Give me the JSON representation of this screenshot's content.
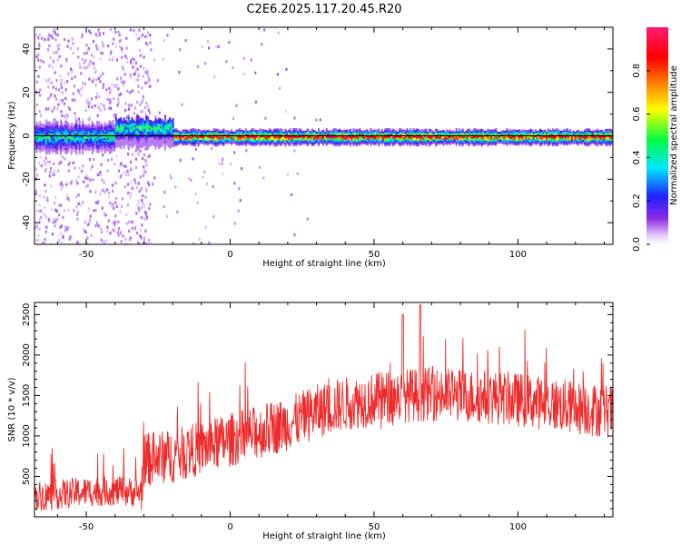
{
  "title": "C2E6.2025.117.20.45.R20",
  "chart_data": [
    {
      "type": "heatmap",
      "xlabel": "Height of straight line (km)",
      "ylabel": "Frequency (Hz)",
      "xlim": [
        -68,
        133
      ],
      "ylim": [
        -50,
        50
      ],
      "xticks": [
        -50,
        0,
        50,
        100
      ],
      "yticks": [
        -40,
        -20,
        0,
        20,
        40
      ],
      "center_line_y": 0,
      "colorbar": {
        "label": "Normalized spectral amplitude",
        "range": [
          0,
          1
        ],
        "ticks": [
          "0.0",
          "0.2",
          "0.4",
          "0.6",
          "0.8"
        ],
        "colormap": "rainbow (violet-blue-cyan-green-yellow-orange-red-pink)"
      },
      "grid": false
    },
    {
      "type": "line",
      "xlabel": "Height of straight line (km)",
      "ylabel": "SNR (10 * v/v)",
      "xlim": [
        -68,
        133
      ],
      "ylim": [
        0,
        2650
      ],
      "xticks": [
        -50,
        0,
        50,
        100
      ],
      "yticks": [
        500,
        1000,
        1500,
        2000,
        2500
      ],
      "line_color": "#ee2a2a",
      "trend": {
        "x": [
          -68,
          -50,
          -40,
          -31,
          -30,
          -20,
          -10,
          0,
          10,
          20,
          30,
          40,
          50,
          60,
          70,
          80,
          90,
          100,
          110,
          120,
          133
        ],
        "y": [
          250,
          310,
          320,
          300,
          700,
          750,
          850,
          950,
          1050,
          1150,
          1300,
          1400,
          1450,
          1500,
          1520,
          1500,
          1480,
          1450,
          1400,
          1350,
          1300
        ]
      },
      "peaks": [
        {
          "x": 66,
          "y": 2620
        },
        {
          "x": 60,
          "y": 2500
        }
      ],
      "grid": false
    }
  ]
}
